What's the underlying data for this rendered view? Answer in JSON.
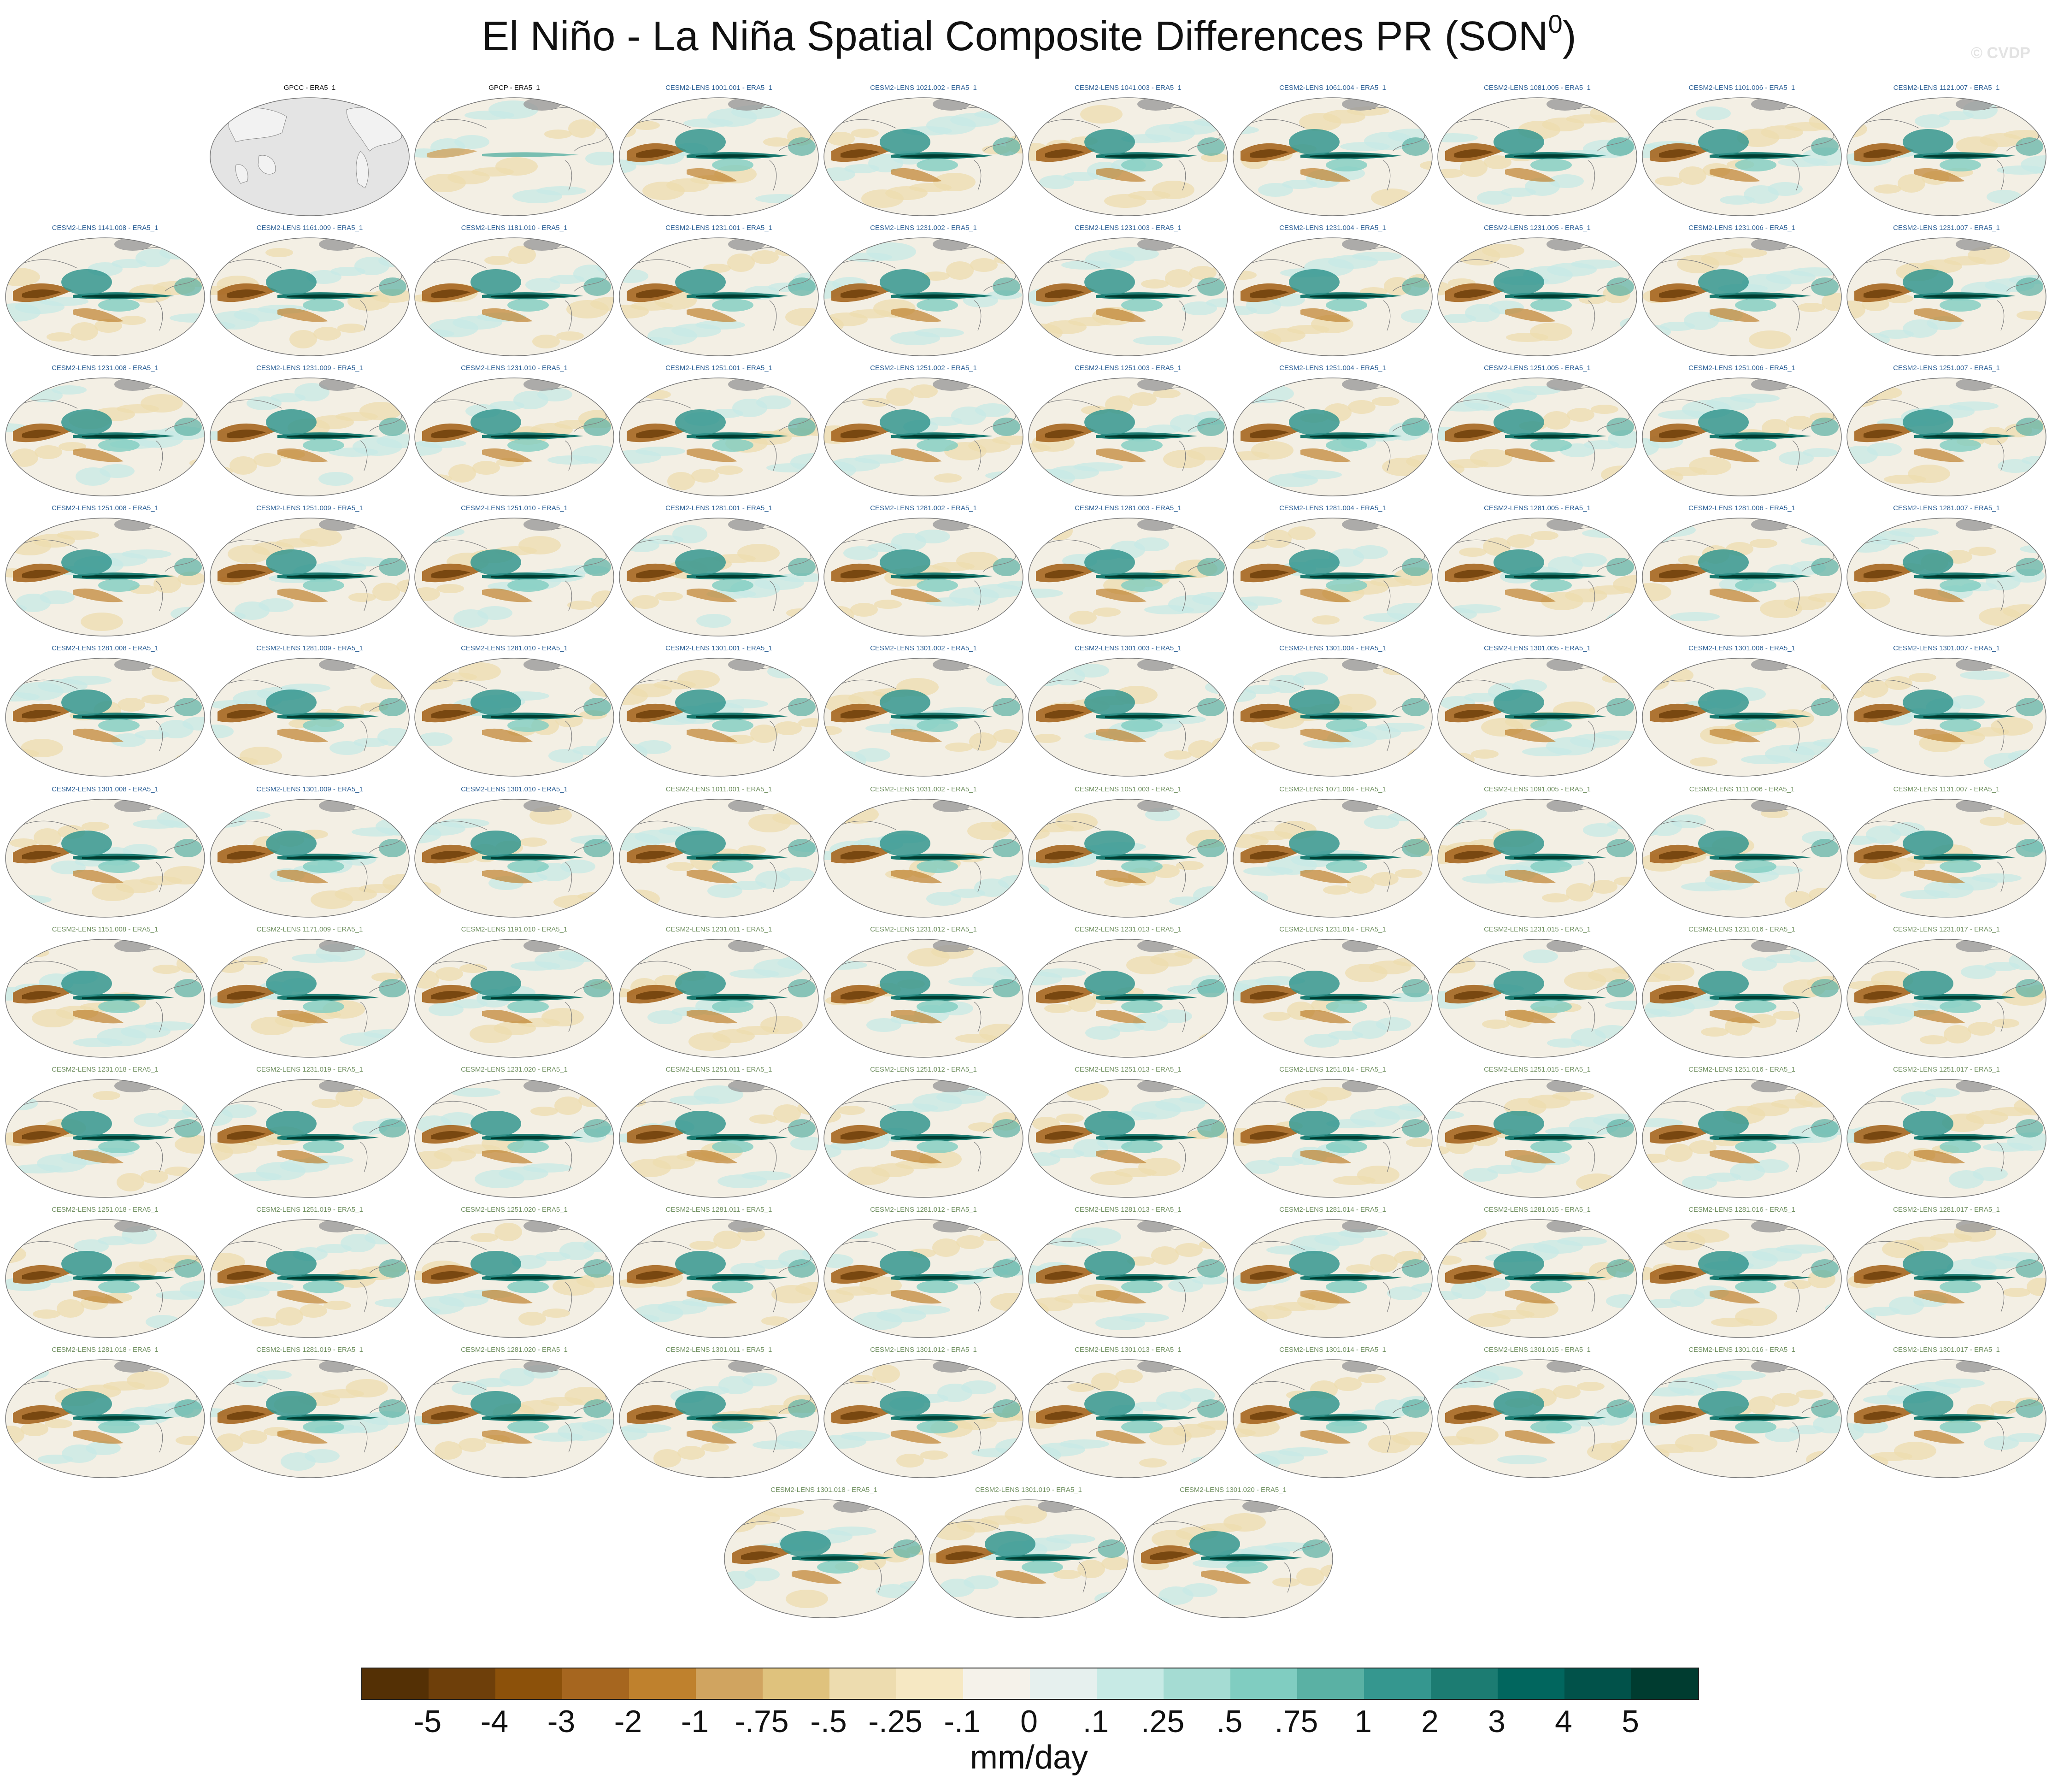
{
  "figure": {
    "title_main": "El Niño - La Niña Spatial Composite Differences PR (SON",
    "title_sup": "0",
    "title_close": ")",
    "credit": "© CVDP",
    "colors": {
      "obs_label": "#111111",
      "model_label_blue": "#2b5f95",
      "model_label_green": "#6f8f5f",
      "land_grey": "#cccccc",
      "map_outline": "#777777"
    }
  },
  "panels": [
    {
      "label": "GPCC - ERA5_1",
      "kind": "obs_land",
      "label_color": "obs_label"
    },
    {
      "label": "GPCP - ERA5_1",
      "kind": "obs",
      "label_color": "obs_label"
    },
    {
      "label": "CESM2-LENS 1001.001 - ERA5_1",
      "kind": "model",
      "label_color": "model_label_blue"
    },
    {
      "label": "CESM2-LENS 1021.002 - ERA5_1",
      "kind": "model",
      "label_color": "model_label_blue"
    },
    {
      "label": "CESM2-LENS 1041.003 - ERA5_1",
      "kind": "model",
      "label_color": "model_label_blue"
    },
    {
      "label": "CESM2-LENS 1061.004 - ERA5_1",
      "kind": "model",
      "label_color": "model_label_blue"
    },
    {
      "label": "CESM2-LENS 1081.005 - ERA5_1",
      "kind": "model",
      "label_color": "model_label_blue"
    },
    {
      "label": "CESM2-LENS 1101.006 - ERA5_1",
      "kind": "model",
      "label_color": "model_label_blue"
    },
    {
      "label": "CESM2-LENS 1121.007 - ERA5_1",
      "kind": "model",
      "label_color": "model_label_blue"
    },
    {
      "label": "CESM2-LENS 1141.008 - ERA5_1",
      "kind": "model",
      "label_color": "model_label_blue"
    },
    {
      "label": "CESM2-LENS 1161.009 - ERA5_1",
      "kind": "model",
      "label_color": "model_label_blue"
    },
    {
      "label": "CESM2-LENS 1181.010 - ERA5_1",
      "kind": "model",
      "label_color": "model_label_blue"
    },
    {
      "label": "CESM2-LENS 1231.001 - ERA5_1",
      "kind": "model",
      "label_color": "model_label_blue"
    },
    {
      "label": "CESM2-LENS 1231.002 - ERA5_1",
      "kind": "model",
      "label_color": "model_label_blue"
    },
    {
      "label": "CESM2-LENS 1231.003 - ERA5_1",
      "kind": "model",
      "label_color": "model_label_blue"
    },
    {
      "label": "CESM2-LENS 1231.004 - ERA5_1",
      "kind": "model",
      "label_color": "model_label_blue"
    },
    {
      "label": "CESM2-LENS 1231.005 - ERA5_1",
      "kind": "model",
      "label_color": "model_label_blue"
    },
    {
      "label": "CESM2-LENS 1231.006 - ERA5_1",
      "kind": "model",
      "label_color": "model_label_blue"
    },
    {
      "label": "CESM2-LENS 1231.007 - ERA5_1",
      "kind": "model",
      "label_color": "model_label_blue"
    },
    {
      "label": "CESM2-LENS 1231.008 - ERA5_1",
      "kind": "model",
      "label_color": "model_label_blue"
    },
    {
      "label": "CESM2-LENS 1231.009 - ERA5_1",
      "kind": "model",
      "label_color": "model_label_blue"
    },
    {
      "label": "CESM2-LENS 1231.010 - ERA5_1",
      "kind": "model",
      "label_color": "model_label_blue"
    },
    {
      "label": "CESM2-LENS 1251.001 - ERA5_1",
      "kind": "model",
      "label_color": "model_label_blue"
    },
    {
      "label": "CESM2-LENS 1251.002 - ERA5_1",
      "kind": "model",
      "label_color": "model_label_blue"
    },
    {
      "label": "CESM2-LENS 1251.003 - ERA5_1",
      "kind": "model",
      "label_color": "model_label_blue"
    },
    {
      "label": "CESM2-LENS 1251.004 - ERA5_1",
      "kind": "model",
      "label_color": "model_label_blue"
    },
    {
      "label": "CESM2-LENS 1251.005 - ERA5_1",
      "kind": "model",
      "label_color": "model_label_blue"
    },
    {
      "label": "CESM2-LENS 1251.006 - ERA5_1",
      "kind": "model",
      "label_color": "model_label_blue"
    },
    {
      "label": "CESM2-LENS 1251.007 - ERA5_1",
      "kind": "model",
      "label_color": "model_label_blue"
    },
    {
      "label": "CESM2-LENS 1251.008 - ERA5_1",
      "kind": "model",
      "label_color": "model_label_blue"
    },
    {
      "label": "CESM2-LENS 1251.009 - ERA5_1",
      "kind": "model",
      "label_color": "model_label_blue"
    },
    {
      "label": "CESM2-LENS 1251.010 - ERA5_1",
      "kind": "model",
      "label_color": "model_label_blue"
    },
    {
      "label": "CESM2-LENS 1281.001 - ERA5_1",
      "kind": "model",
      "label_color": "model_label_blue"
    },
    {
      "label": "CESM2-LENS 1281.002 - ERA5_1",
      "kind": "model",
      "label_color": "model_label_blue"
    },
    {
      "label": "CESM2-LENS 1281.003 - ERA5_1",
      "kind": "model",
      "label_color": "model_label_blue"
    },
    {
      "label": "CESM2-LENS 1281.004 - ERA5_1",
      "kind": "model",
      "label_color": "model_label_blue"
    },
    {
      "label": "CESM2-LENS 1281.005 - ERA5_1",
      "kind": "model",
      "label_color": "model_label_blue"
    },
    {
      "label": "CESM2-LENS 1281.006 - ERA5_1",
      "kind": "model",
      "label_color": "model_label_blue"
    },
    {
      "label": "CESM2-LENS 1281.007 - ERA5_1",
      "kind": "model",
      "label_color": "model_label_blue"
    },
    {
      "label": "CESM2-LENS 1281.008 - ERA5_1",
      "kind": "model",
      "label_color": "model_label_blue"
    },
    {
      "label": "CESM2-LENS 1281.009 - ERA5_1",
      "kind": "model",
      "label_color": "model_label_blue"
    },
    {
      "label": "CESM2-LENS 1281.010 - ERA5_1",
      "kind": "model",
      "label_color": "model_label_blue"
    },
    {
      "label": "CESM2-LENS 1301.001 - ERA5_1",
      "kind": "model",
      "label_color": "model_label_blue"
    },
    {
      "label": "CESM2-LENS 1301.002 - ERA5_1",
      "kind": "model",
      "label_color": "model_label_blue"
    },
    {
      "label": "CESM2-LENS 1301.003 - ERA5_1",
      "kind": "model",
      "label_color": "model_label_blue"
    },
    {
      "label": "CESM2-LENS 1301.004 - ERA5_1",
      "kind": "model",
      "label_color": "model_label_blue"
    },
    {
      "label": "CESM2-LENS 1301.005 - ERA5_1",
      "kind": "model",
      "label_color": "model_label_blue"
    },
    {
      "label": "CESM2-LENS 1301.006 - ERA5_1",
      "kind": "model",
      "label_color": "model_label_blue"
    },
    {
      "label": "CESM2-LENS 1301.007 - ERA5_1",
      "kind": "model",
      "label_color": "model_label_blue"
    },
    {
      "label": "CESM2-LENS 1301.008 - ERA5_1",
      "kind": "model",
      "label_color": "model_label_blue"
    },
    {
      "label": "CESM2-LENS 1301.009 - ERA5_1",
      "kind": "model",
      "label_color": "model_label_blue"
    },
    {
      "label": "CESM2-LENS 1301.010 - ERA5_1",
      "kind": "model",
      "label_color": "model_label_blue"
    },
    {
      "label": "CESM2-LENS 1011.001 - ERA5_1",
      "kind": "model",
      "label_color": "model_label_green"
    },
    {
      "label": "CESM2-LENS 1031.002 - ERA5_1",
      "kind": "model",
      "label_color": "model_label_green"
    },
    {
      "label": "CESM2-LENS 1051.003 - ERA5_1",
      "kind": "model",
      "label_color": "model_label_green"
    },
    {
      "label": "CESM2-LENS 1071.004 - ERA5_1",
      "kind": "model",
      "label_color": "model_label_green"
    },
    {
      "label": "CESM2-LENS 1091.005 - ERA5_1",
      "kind": "model",
      "label_color": "model_label_green"
    },
    {
      "label": "CESM2-LENS 1111.006 - ERA5_1",
      "kind": "model",
      "label_color": "model_label_green"
    },
    {
      "label": "CESM2-LENS 1131.007 - ERA5_1",
      "kind": "model",
      "label_color": "model_label_green"
    },
    {
      "label": "CESM2-LENS 1151.008 - ERA5_1",
      "kind": "model",
      "label_color": "model_label_green"
    },
    {
      "label": "CESM2-LENS 1171.009 - ERA5_1",
      "kind": "model",
      "label_color": "model_label_green"
    },
    {
      "label": "CESM2-LENS 1191.010 - ERA5_1",
      "kind": "model",
      "label_color": "model_label_green"
    },
    {
      "label": "CESM2-LENS 1231.011 - ERA5_1",
      "kind": "model",
      "label_color": "model_label_green"
    },
    {
      "label": "CESM2-LENS 1231.012 - ERA5_1",
      "kind": "model",
      "label_color": "model_label_green"
    },
    {
      "label": "CESM2-LENS 1231.013 - ERA5_1",
      "kind": "model",
      "label_color": "model_label_green"
    },
    {
      "label": "CESM2-LENS 1231.014 - ERA5_1",
      "kind": "model",
      "label_color": "model_label_green"
    },
    {
      "label": "CESM2-LENS 1231.015 - ERA5_1",
      "kind": "model",
      "label_color": "model_label_green"
    },
    {
      "label": "CESM2-LENS 1231.016 - ERA5_1",
      "kind": "model",
      "label_color": "model_label_green"
    },
    {
      "label": "CESM2-LENS 1231.017 - ERA5_1",
      "kind": "model",
      "label_color": "model_label_green"
    },
    {
      "label": "CESM2-LENS 1231.018 - ERA5_1",
      "kind": "model",
      "label_color": "model_label_green"
    },
    {
      "label": "CESM2-LENS 1231.019 - ERA5_1",
      "kind": "model",
      "label_color": "model_label_green"
    },
    {
      "label": "CESM2-LENS 1231.020 - ERA5_1",
      "kind": "model",
      "label_color": "model_label_green"
    },
    {
      "label": "CESM2-LENS 1251.011 - ERA5_1",
      "kind": "model",
      "label_color": "model_label_green"
    },
    {
      "label": "CESM2-LENS 1251.012 - ERA5_1",
      "kind": "model",
      "label_color": "model_label_green"
    },
    {
      "label": "CESM2-LENS 1251.013 - ERA5_1",
      "kind": "model",
      "label_color": "model_label_green"
    },
    {
      "label": "CESM2-LENS 1251.014 - ERA5_1",
      "kind": "model",
      "label_color": "model_label_green"
    },
    {
      "label": "CESM2-LENS 1251.015 - ERA5_1",
      "kind": "model",
      "label_color": "model_label_green"
    },
    {
      "label": "CESM2-LENS 1251.016 - ERA5_1",
      "kind": "model",
      "label_color": "model_label_green"
    },
    {
      "label": "CESM2-LENS 1251.017 - ERA5_1",
      "kind": "model",
      "label_color": "model_label_green"
    },
    {
      "label": "CESM2-LENS 1251.018 - ERA5_1",
      "kind": "model",
      "label_color": "model_label_green"
    },
    {
      "label": "CESM2-LENS 1251.019 - ERA5_1",
      "kind": "model",
      "label_color": "model_label_green"
    },
    {
      "label": "CESM2-LENS 1251.020 - ERA5_1",
      "kind": "model",
      "label_color": "model_label_green"
    },
    {
      "label": "CESM2-LENS 1281.011 - ERA5_1",
      "kind": "model",
      "label_color": "model_label_green"
    },
    {
      "label": "CESM2-LENS 1281.012 - ERA5_1",
      "kind": "model",
      "label_color": "model_label_green"
    },
    {
      "label": "CESM2-LENS 1281.013 - ERA5_1",
      "kind": "model",
      "label_color": "model_label_green"
    },
    {
      "label": "CESM2-LENS 1281.014 - ERA5_1",
      "kind": "model",
      "label_color": "model_label_green"
    },
    {
      "label": "CESM2-LENS 1281.015 - ERA5_1",
      "kind": "model",
      "label_color": "model_label_green"
    },
    {
      "label": "CESM2-LENS 1281.016 - ERA5_1",
      "kind": "model",
      "label_color": "model_label_green"
    },
    {
      "label": "CESM2-LENS 1281.017 - ERA5_1",
      "kind": "model",
      "label_color": "model_label_green"
    },
    {
      "label": "CESM2-LENS 1281.018 - ERA5_1",
      "kind": "model",
      "label_color": "model_label_green"
    },
    {
      "label": "CESM2-LENS 1281.019 - ERA5_1",
      "kind": "model",
      "label_color": "model_label_green"
    },
    {
      "label": "CESM2-LENS 1281.020 - ERA5_1",
      "kind": "model",
      "label_color": "model_label_green"
    },
    {
      "label": "CESM2-LENS 1301.011 - ERA5_1",
      "kind": "model",
      "label_color": "model_label_green"
    },
    {
      "label": "CESM2-LENS 1301.012 - ERA5_1",
      "kind": "model",
      "label_color": "model_label_green"
    },
    {
      "label": "CESM2-LENS 1301.013 - ERA5_1",
      "kind": "model",
      "label_color": "model_label_green"
    },
    {
      "label": "CESM2-LENS 1301.014 - ERA5_1",
      "kind": "model",
      "label_color": "model_label_green"
    },
    {
      "label": "CESM2-LENS 1301.015 - ERA5_1",
      "kind": "model",
      "label_color": "model_label_green"
    },
    {
      "label": "CESM2-LENS 1301.016 - ERA5_1",
      "kind": "model",
      "label_color": "model_label_green"
    },
    {
      "label": "CESM2-LENS 1301.017 - ERA5_1",
      "kind": "model",
      "label_color": "model_label_green"
    },
    {
      "label": "CESM2-LENS 1301.018 - ERA5_1",
      "kind": "model",
      "label_color": "model_label_green"
    },
    {
      "label": "CESM2-LENS 1301.019 - ERA5_1",
      "kind": "model",
      "label_color": "model_label_green"
    },
    {
      "label": "CESM2-LENS 1301.020 - ERA5_1",
      "kind": "model",
      "label_color": "model_label_green"
    }
  ],
  "colorbar": {
    "labels": [
      "-5",
      "-4",
      "-3",
      "-2",
      "-1",
      "-.75",
      "-.5",
      "-.25",
      "-.1",
      "0",
      ".1",
      ".25",
      ".5",
      ".75",
      "1",
      "2",
      "3",
      "4",
      "5"
    ],
    "colors": [
      "#543005",
      "#6e3f0a",
      "#8c510a",
      "#a6661f",
      "#bf812d",
      "#d0a460",
      "#dfc27d",
      "#eddcaf",
      "#f6e8c3",
      "#f5f2ea",
      "#e6f0ee",
      "#c7eae5",
      "#a5dcd3",
      "#80cdc1",
      "#5ab1a4",
      "#35978f",
      "#1c7c72",
      "#01665e",
      "#01524a",
      "#003c30"
    ],
    "units": "mm/day"
  }
}
